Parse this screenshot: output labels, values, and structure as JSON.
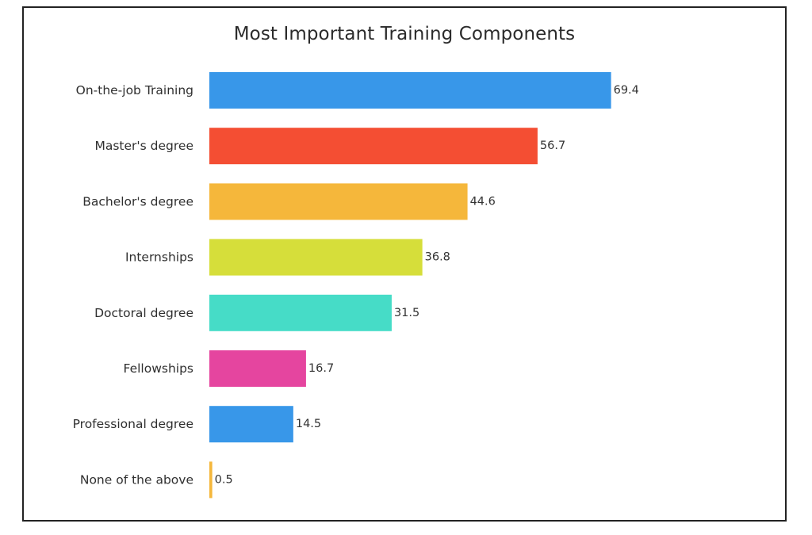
{
  "chart_data": {
    "type": "bar",
    "orientation": "horizontal",
    "title": "Most Important Training Components",
    "xlabel": "",
    "ylabel": "",
    "xlim": [
      0,
      80
    ],
    "grid": false,
    "legend": "none",
    "categories": [
      "On-the-job Training",
      "Master's degree",
      "Bachelor's degree",
      "Internships",
      "Doctoral degree",
      "Fellowships",
      "Professional degree",
      "None of the above"
    ],
    "values": [
      69.4,
      56.7,
      44.6,
      36.8,
      31.5,
      16.7,
      14.5,
      0.5
    ],
    "value_labels": [
      "69.4",
      "56.7",
      "44.6",
      "36.8",
      "31.5",
      "16.7",
      "14.5",
      "0.5"
    ],
    "colors": [
      "#3897e9",
      "#f44e33",
      "#f5b73b",
      "#d6de3a",
      "#46dcc7",
      "#e5459f",
      "#3897e9",
      "#f5b73b"
    ]
  }
}
